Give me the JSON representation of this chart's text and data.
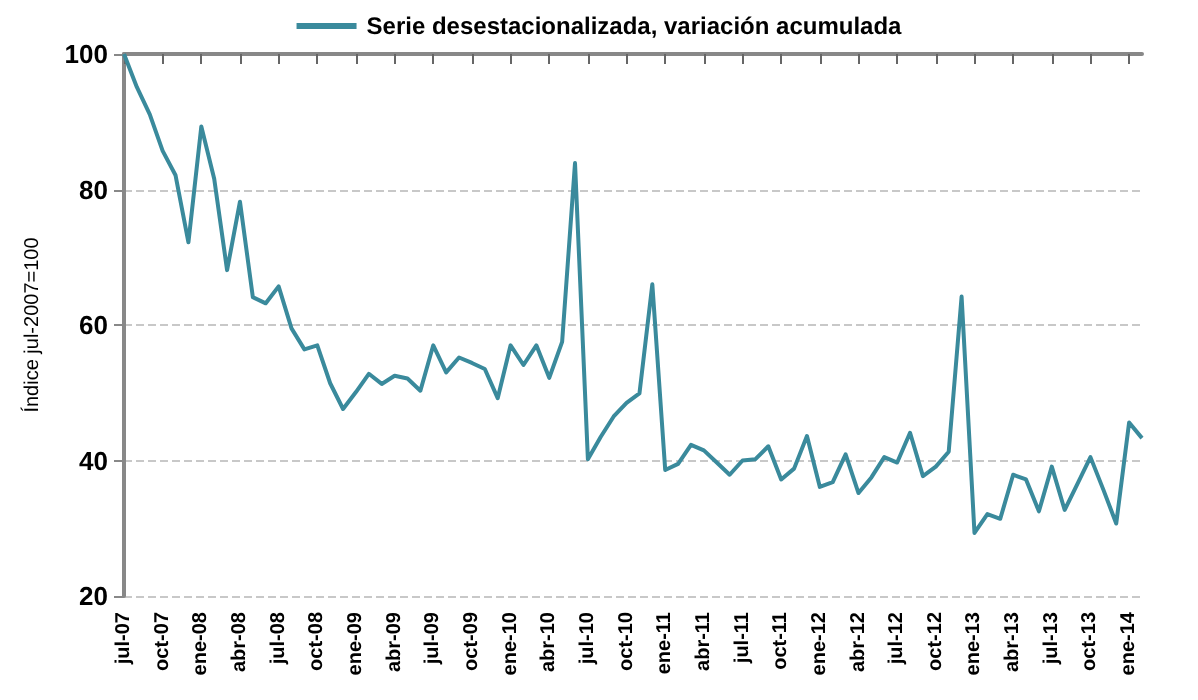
{
  "chart_data": {
    "type": "line",
    "ylabel": "Índice jul-2007=100",
    "categories": [
      "jul-07",
      null,
      null,
      "oct-07",
      null,
      null,
      "ene-08",
      null,
      null,
      "abr-08",
      null,
      null,
      "jul-08",
      null,
      null,
      "oct-08",
      null,
      null,
      "ene-09",
      null,
      null,
      "abr-09",
      null,
      null,
      "jul-09",
      null,
      null,
      "oct-09",
      null,
      null,
      "ene-10",
      null,
      null,
      "abr-10",
      null,
      null,
      "jul-10",
      null,
      null,
      "oct-10",
      null,
      null,
      "ene-11",
      null,
      null,
      "abr-11",
      null,
      null,
      "jul-11",
      null,
      null,
      "oct-11",
      null,
      null,
      "ene-12",
      null,
      null,
      "abr-12",
      null,
      null,
      "jul-12",
      null,
      null,
      "oct-12",
      null,
      null,
      "ene-13",
      null,
      null,
      "abr-13",
      null,
      null,
      "jul-13",
      null,
      null,
      "oct-13",
      null,
      null,
      "ene-14",
      null
    ],
    "series": [
      {
        "name": "Serie desestacionalizada, variación acumulada",
        "color": "#3a8a9c",
        "values": [
          100,
          95.1,
          91.1,
          85.7,
          82.1,
          72.2,
          89.3,
          81.6,
          68.1,
          78.2,
          64.1,
          63.2,
          65.7,
          59.5,
          56.4,
          57.0,
          51.4,
          47.6,
          50.1,
          52.8,
          51.3,
          52.5,
          52.1,
          50.3,
          57.0,
          53.0,
          55.2,
          54.4,
          53.5,
          49.2,
          57.0,
          54.1,
          57.0,
          52.2,
          57.5,
          83.9,
          40.2,
          43.5,
          46.5,
          48.5,
          49.9,
          66.0,
          38.6,
          39.5,
          42.3,
          41.5,
          39.7,
          37.9,
          40.0,
          40.2,
          42.1,
          37.2,
          38.8,
          43.6,
          36.1,
          36.8,
          40.9,
          35.2,
          37.5,
          40.5,
          39.7,
          44.1,
          37.7,
          39.1,
          41.3,
          64.2,
          29.3,
          32.1,
          31.4,
          37.9,
          37.2,
          32.5,
          39.1,
          32.7,
          36.6,
          40.5,
          35.7,
          30.7,
          45.6,
          43.3
        ]
      }
    ],
    "ylim": [
      20,
      100
    ],
    "yticks": [
      20,
      40,
      60,
      80,
      100
    ],
    "grid": "y",
    "legend": "top",
    "marker": "none",
    "line_style": "solid"
  }
}
